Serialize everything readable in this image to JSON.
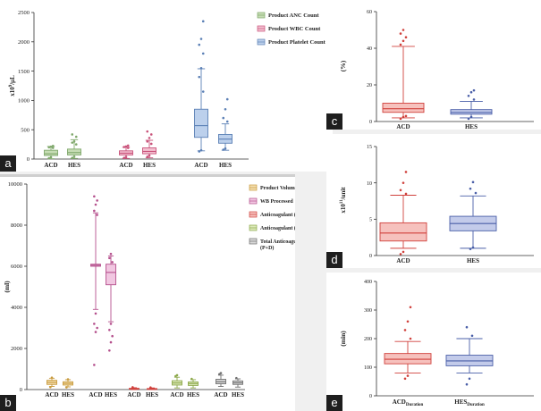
{
  "chart_data": [
    {
      "id": "a",
      "panel_label": "a",
      "type": "boxplot",
      "ylabel": "x10^9/μL",
      "ylabel_main": "x10",
      "ylabel_sup": "9",
      "ylabel_rest": "/μL",
      "ylim": [
        0,
        2500
      ],
      "yticks": [
        "0",
        "500",
        "1000",
        "1500",
        "2000",
        "2500"
      ],
      "ytick_values": [
        0,
        500,
        1000,
        1500,
        2000,
        2500
      ],
      "legend_position": "top-right",
      "series": [
        {
          "name": "Product ANC Count",
          "color": "#7fa86b",
          "fill": "#c6dcb4"
        },
        {
          "name": "Product WBC Count",
          "color": "#c9527a",
          "fill": "#f3c0d0"
        },
        {
          "name": "Product Platelet Count",
          "color": "#5a7fb5",
          "fill": "#bcd0ec"
        }
      ],
      "boxes": [
        {
          "label": "ACD",
          "series": 0,
          "min": 5,
          "q1": 60,
          "median": 90,
          "q3": 150,
          "max": 215,
          "outliers": [
            15,
            30,
            190,
            200,
            210,
            225
          ]
        },
        {
          "label": "HES",
          "series": 0,
          "min": 10,
          "q1": 70,
          "median": 110,
          "q3": 170,
          "max": 330,
          "outliers": [
            20,
            40,
            250,
            280,
            300,
            380,
            420
          ]
        },
        {
          "label": "ACD",
          "series": 1,
          "min": 10,
          "q1": 70,
          "median": 100,
          "q3": 140,
          "max": 200,
          "outliers": [
            20,
            35,
            190,
            205,
            215,
            230
          ]
        },
        {
          "label": "HES",
          "series": 1,
          "min": 20,
          "q1": 90,
          "median": 130,
          "q3": 190,
          "max": 320,
          "outliers": [
            40,
            60,
            260,
            300,
            360,
            420,
            470
          ]
        },
        {
          "label": "ACD",
          "series": 2,
          "min": 140,
          "q1": 370,
          "median": 570,
          "q3": 850,
          "max": 1540,
          "outliers": [
            130,
            150,
            1150,
            1400,
            1550,
            1800,
            1950,
            2050,
            2350
          ]
        },
        {
          "label": "HES",
          "series": 2,
          "min": 150,
          "q1": 270,
          "median": 340,
          "q3": 420,
          "max": 600,
          "outliers": [
            160,
            180,
            640,
            700,
            850,
            1020
          ]
        }
      ]
    },
    {
      "id": "b",
      "panel_label": "b",
      "type": "boxplot",
      "ylabel": "(ml)",
      "ylim": [
        0,
        10000
      ],
      "yticks": [
        "0",
        "2000",
        "4000",
        "6000",
        "8000",
        "10000"
      ],
      "ytick_values": [
        0,
        2000,
        4000,
        6000,
        8000,
        10000
      ],
      "legend_position": "top-right",
      "series": [
        {
          "name": "Product Volume",
          "color": "#c89a3c",
          "fill": "#f3deb0"
        },
        {
          "name": "WB Processed",
          "color": "#b5508d",
          "fill": "#f1c7e1"
        },
        {
          "name": "Anticoagulant (P)",
          "color": "#d0413c",
          "fill": "#f6c1bd"
        },
        {
          "name": "Anticoagulant (D)",
          "color": "#8ca84a",
          "fill": "#dbe8b8"
        },
        {
          "name": "Total Anticoagulant (P+D)",
          "color": "#707070",
          "fill": "#d8d8d8"
        }
      ],
      "boxes": [
        {
          "label": "ACD",
          "series": 0,
          "min": 150,
          "q1": 250,
          "median": 350,
          "q3": 450,
          "max": 550,
          "outliers": [
            120,
            580
          ]
        },
        {
          "label": "HES",
          "series": 0,
          "min": 130,
          "q1": 220,
          "median": 300,
          "q3": 380,
          "max": 480,
          "outliers": [
            110,
            500
          ]
        },
        {
          "label": "ACD",
          "series": 1,
          "min": 3900,
          "q1": 6000,
          "median": 6050,
          "q3": 6100,
          "max": 8600,
          "outliers": [
            1200,
            2800,
            3000,
            3200,
            3700,
            8500,
            8700,
            9000,
            9200,
            9400
          ]
        },
        {
          "label": "HES",
          "series": 1,
          "min": 3300,
          "q1": 5100,
          "median": 5700,
          "q3": 6100,
          "max": 6500,
          "outliers": [
            1900,
            2300,
            2600,
            2900,
            3200,
            6200,
            6400,
            6600
          ]
        },
        {
          "label": "ACD",
          "series": 2,
          "min": 0,
          "q1": 20,
          "median": 40,
          "q3": 60,
          "max": 90,
          "outliers": [
            110
          ]
        },
        {
          "label": "HES",
          "series": 2,
          "min": 0,
          "q1": 15,
          "median": 30,
          "q3": 50,
          "max": 80,
          "outliers": [
            100
          ]
        },
        {
          "label": "ACD",
          "series": 3,
          "min": 80,
          "q1": 220,
          "median": 320,
          "q3": 430,
          "max": 600,
          "outliers": [
            650,
            700
          ]
        },
        {
          "label": "HES",
          "series": 3,
          "min": 80,
          "q1": 200,
          "median": 290,
          "q3": 370,
          "max": 480,
          "outliers": [
            520
          ]
        },
        {
          "label": "ACD",
          "series": 4,
          "min": 150,
          "q1": 280,
          "median": 380,
          "q3": 500,
          "max": 700,
          "outliers": [
            750,
            800
          ]
        },
        {
          "label": "HES",
          "series": 4,
          "min": 120,
          "q1": 250,
          "median": 330,
          "q3": 420,
          "max": 520,
          "outliers": [
            560
          ]
        }
      ]
    },
    {
      "id": "c",
      "panel_label": "c",
      "type": "boxplot",
      "ylabel": "(%)",
      "ylim": [
        0,
        60
      ],
      "yticks": [
        "0",
        "20",
        "40",
        "60"
      ],
      "ytick_values": [
        0,
        20,
        40,
        60
      ],
      "series": [
        {
          "name": "ACD",
          "color": "#d0413c",
          "fill": "#f6c1bd"
        },
        {
          "name": "HES",
          "color": "#4a5fa8",
          "fill": "#c3cbea"
        }
      ],
      "boxes": [
        {
          "label": "ACD",
          "series": 0,
          "min": 2,
          "q1": 5,
          "median": 7,
          "q3": 10,
          "max": 41,
          "outliers": [
            1.5,
            2.5,
            3,
            42,
            44,
            46,
            48,
            50
          ]
        },
        {
          "label": "HES",
          "series": 1,
          "min": 2,
          "q1": 4,
          "median": 5,
          "q3": 6.5,
          "max": 11,
          "outliers": [
            1.5,
            2.5,
            12,
            14,
            16,
            17
          ]
        }
      ]
    },
    {
      "id": "d",
      "panel_label": "d",
      "type": "boxplot",
      "ylabel": "x10^11/unit",
      "ylabel_main": "x10",
      "ylabel_sup": "11",
      "ylabel_rest": "/unit",
      "ylim": [
        0,
        15
      ],
      "yticks": [
        "0",
        "5",
        "10",
        "15"
      ],
      "ytick_values": [
        0,
        5,
        10,
        15
      ],
      "series": [
        {
          "name": "ACD",
          "color": "#d0413c",
          "fill": "#f6c1bd"
        },
        {
          "name": "HES",
          "color": "#4a5fa8",
          "fill": "#c3cbea"
        }
      ],
      "boxes": [
        {
          "label": "ACD",
          "series": 0,
          "min": 1.0,
          "q1": 2.0,
          "median": 3.1,
          "q3": 4.5,
          "max": 8.3,
          "outliers": [
            0.2,
            0.5,
            8.5,
            9.0,
            10.0,
            11.5
          ]
        },
        {
          "label": "HES",
          "series": 1,
          "min": 1.0,
          "q1": 3.4,
          "median": 4.4,
          "q3": 5.4,
          "max": 8.2,
          "outliers": [
            0.9,
            1.1,
            8.6,
            9.2,
            10.1
          ]
        }
      ]
    },
    {
      "id": "e",
      "panel_label": "e",
      "type": "boxplot",
      "ylabel": "(min)",
      "ylim": [
        0,
        400
      ],
      "yticks": [
        "0",
        "100",
        "200",
        "300",
        "400"
      ],
      "ytick_values": [
        0,
        100,
        200,
        300,
        400
      ],
      "series": [
        {
          "name": "ACD",
          "color": "#d0413c",
          "fill": "#f6c1bd"
        },
        {
          "name": "HES",
          "color": "#4a5fa8",
          "fill": "#c3cbea"
        }
      ],
      "boxes": [
        {
          "label": "ACD",
          "sub": "Duration",
          "series": 0,
          "min": 80,
          "q1": 112,
          "median": 128,
          "q3": 148,
          "max": 190,
          "outliers": [
            60,
            70,
            200,
            230,
            260,
            310
          ]
        },
        {
          "label": "HES",
          "sub": "Duration",
          "series": 1,
          "min": 80,
          "q1": 105,
          "median": 122,
          "q3": 142,
          "max": 200,
          "outliers": [
            40,
            60,
            210,
            240
          ]
        }
      ]
    }
  ]
}
